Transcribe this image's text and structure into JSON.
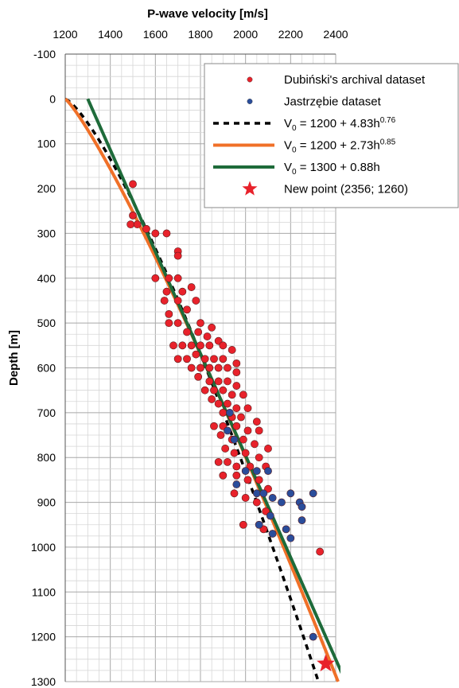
{
  "chart_data": {
    "type": "scatter",
    "xlabel": "P-wave velocity [m/s]",
    "ylabel": "Depth [m]",
    "xlim": [
      1200,
      2400
    ],
    "ylim": [
      -100,
      1300
    ],
    "y_inverted": true,
    "x_axis_position": "top",
    "x_ticks": [
      1200,
      1400,
      1600,
      1800,
      2000,
      2200,
      2400
    ],
    "y_ticks": [
      -100,
      0,
      100,
      200,
      300,
      400,
      500,
      600,
      700,
      800,
      900,
      1000,
      1100,
      1200,
      1300
    ],
    "grid": true,
    "legend_position": "top-right",
    "series": [
      {
        "name": "Dubiński's archival dataset",
        "kind": "scatter",
        "color": "#e8222b",
        "points": [
          [
            1500,
            190
          ],
          [
            1500,
            260
          ],
          [
            1490,
            280
          ],
          [
            1520,
            280
          ],
          [
            1560,
            290
          ],
          [
            1600,
            300
          ],
          [
            1650,
            300
          ],
          [
            1700,
            340
          ],
          [
            1700,
            350
          ],
          [
            1600,
            400
          ],
          [
            1660,
            400
          ],
          [
            1700,
            400
          ],
          [
            1650,
            430
          ],
          [
            1720,
            430
          ],
          [
            1760,
            420
          ],
          [
            1640,
            450
          ],
          [
            1700,
            450
          ],
          [
            1780,
            450
          ],
          [
            1660,
            480
          ],
          [
            1740,
            470
          ],
          [
            1700,
            500
          ],
          [
            1800,
            500
          ],
          [
            1660,
            500
          ],
          [
            1850,
            510
          ],
          [
            1740,
            520
          ],
          [
            1790,
            520
          ],
          [
            1830,
            530
          ],
          [
            1880,
            540
          ],
          [
            1680,
            550
          ],
          [
            1720,
            550
          ],
          [
            1760,
            550
          ],
          [
            1800,
            550
          ],
          [
            1840,
            550
          ],
          [
            1900,
            550
          ],
          [
            1940,
            560
          ],
          [
            1700,
            580
          ],
          [
            1740,
            580
          ],
          [
            1780,
            570
          ],
          [
            1820,
            580
          ],
          [
            1860,
            580
          ],
          [
            1900,
            580
          ],
          [
            1960,
            590
          ],
          [
            1760,
            600
          ],
          [
            1800,
            600
          ],
          [
            1840,
            600
          ],
          [
            1880,
            600
          ],
          [
            1920,
            600
          ],
          [
            1960,
            610
          ],
          [
            1790,
            620
          ],
          [
            1840,
            630
          ],
          [
            1880,
            630
          ],
          [
            1920,
            630
          ],
          [
            1960,
            640
          ],
          [
            1820,
            650
          ],
          [
            1860,
            650
          ],
          [
            1900,
            650
          ],
          [
            1940,
            660
          ],
          [
            1990,
            660
          ],
          [
            1850,
            670
          ],
          [
            1880,
            680
          ],
          [
            1920,
            680
          ],
          [
            1960,
            690
          ],
          [
            2010,
            690
          ],
          [
            1900,
            700
          ],
          [
            1940,
            710
          ],
          [
            1980,
            710
          ],
          [
            2050,
            720
          ],
          [
            1860,
            730
          ],
          [
            1900,
            730
          ],
          [
            1960,
            730
          ],
          [
            2010,
            740
          ],
          [
            2060,
            740
          ],
          [
            1890,
            750
          ],
          [
            1940,
            760
          ],
          [
            1990,
            760
          ],
          [
            2040,
            770
          ],
          [
            2100,
            780
          ],
          [
            1910,
            780
          ],
          [
            1950,
            790
          ],
          [
            2000,
            790
          ],
          [
            2060,
            800
          ],
          [
            1880,
            810
          ],
          [
            1920,
            810
          ],
          [
            1960,
            820
          ],
          [
            2020,
            820
          ],
          [
            2090,
            820
          ],
          [
            1900,
            840
          ],
          [
            1960,
            840
          ],
          [
            2010,
            850
          ],
          [
            2060,
            850
          ],
          [
            2100,
            870
          ],
          [
            1950,
            880
          ],
          [
            2000,
            890
          ],
          [
            2050,
            900
          ],
          [
            2090,
            920
          ],
          [
            1990,
            950
          ],
          [
            2080,
            960
          ],
          [
            2330,
            1010
          ]
        ]
      },
      {
        "name": "Jastrzębie dataset",
        "kind": "scatter",
        "color": "#2a4d9b",
        "points": [
          [
            1930,
            700
          ],
          [
            1920,
            740
          ],
          [
            1950,
            760
          ],
          [
            2000,
            830
          ],
          [
            2050,
            830
          ],
          [
            2100,
            830
          ],
          [
            1960,
            860
          ],
          [
            2050,
            880
          ],
          [
            2080,
            880
          ],
          [
            2200,
            880
          ],
          [
            2300,
            880
          ],
          [
            2120,
            890
          ],
          [
            2160,
            900
          ],
          [
            2240,
            900
          ],
          [
            2250,
            910
          ],
          [
            2110,
            930
          ],
          [
            2250,
            940
          ],
          [
            2060,
            950
          ],
          [
            2180,
            960
          ],
          [
            2120,
            970
          ],
          [
            2200,
            980
          ],
          [
            2300,
            1200
          ]
        ]
      },
      {
        "name": "V₀ = 1200 + 4.83h^0.76",
        "kind": "line",
        "color": "#000000",
        "dash": true,
        "formula": {
          "a": 1200,
          "b": 4.83,
          "c": 0.76
        }
      },
      {
        "name": "V₀ = 1200 + 2.73h^0.85",
        "kind": "line",
        "color": "#f07028",
        "formula": {
          "a": 1200,
          "b": 2.73,
          "c": 0.85
        }
      },
      {
        "name": "V₀ = 1300 + 0.88h",
        "kind": "line",
        "color": "#1e6b3a",
        "formula": {
          "a": 1300,
          "b": 0.88,
          "c": 1
        }
      },
      {
        "name": "New point (2356; 1260)",
        "kind": "star",
        "color": "#e8222b",
        "points": [
          [
            2356,
            1260
          ]
        ]
      }
    ],
    "legend": [
      {
        "label": "Dubiński's archival dataset",
        "marker": "dot",
        "color": "#e8222b"
      },
      {
        "label": "Jastrzębie dataset",
        "marker": "dot",
        "color": "#2a4d9b"
      },
      {
        "label_main": "V",
        "label_sub": "0",
        "label_rest": " = 1200 + 4.83h",
        "label_sup": "0.76",
        "marker": "dash",
        "color": "#000000"
      },
      {
        "label_main": "V",
        "label_sub": "0",
        "label_rest": " = 1200 + 2.73h",
        "label_sup": "0.85",
        "marker": "line",
        "color": "#f07028"
      },
      {
        "label_main": "V",
        "label_sub": "0",
        "label_rest": " = 1300 + 0.88h",
        "label_sup": "",
        "marker": "line",
        "color": "#1e6b3a"
      },
      {
        "label": "New point (2356; 1260)",
        "marker": "star",
        "color": "#e8222b"
      }
    ]
  }
}
